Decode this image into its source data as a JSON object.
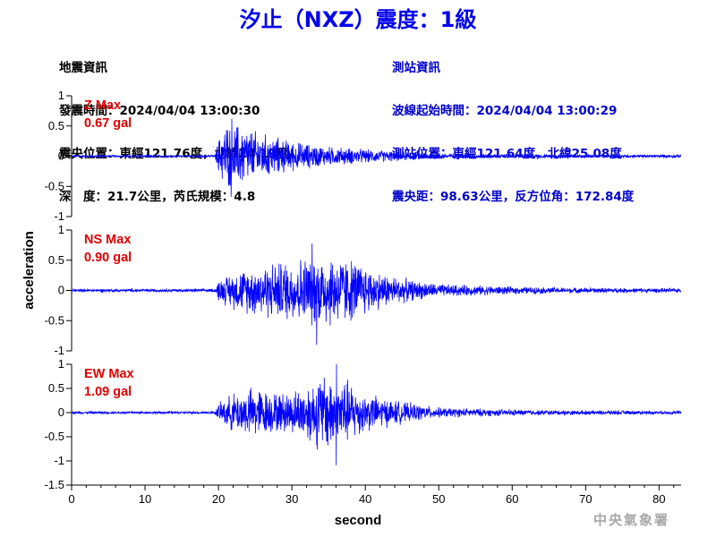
{
  "title": "汐止（NXZ）震度：1級",
  "quake": {
    "heading": "地震資訊",
    "origin_time": "發震時間：2024/04/04 13:00:30",
    "epicenter": "震央位置：東經121.76度，北緯24.19度",
    "depth_magnitude": "深　度：21.7公里，芮氏規模：4.8"
  },
  "station": {
    "heading": "測站資訊",
    "wave_start": "波線起始時間：2024/04/04 13:00:29",
    "location": "測站位置：東經121.64度，北緯25.08度",
    "distance": "震央距：98.63公里，反方位角：172.84度"
  },
  "watermark": "中央氣象署",
  "colors": {
    "trace": "#0000ff",
    "title": "#0000ee",
    "max_label": "#e00000",
    "station_text": "#0000cc"
  },
  "chart_data": {
    "type": "line",
    "xlabel": "second",
    "ylabel": "acceleration",
    "xlim": [
      0,
      83
    ],
    "x_ticks": [
      "0",
      "10",
      "20",
      "30",
      "40",
      "50",
      "60",
      "70",
      "80"
    ],
    "grid": false,
    "panels": [
      {
        "component": "Z",
        "label": "Z Max",
        "max_text": "0.67 gal",
        "max_value": 0.67,
        "ylim": [
          -1,
          1
        ],
        "y_ticks": [
          "1",
          "0.5",
          "0",
          "-0.5",
          "-1"
        ],
        "envelope": {
          "x": [
            0,
            19.5,
            20,
            21,
            23,
            26,
            30,
            35,
            40,
            45,
            50,
            60,
            70,
            83
          ],
          "amp": [
            0.02,
            0.02,
            0.32,
            0.62,
            0.6,
            0.42,
            0.28,
            0.18,
            0.13,
            0.09,
            0.06,
            0.04,
            0.03,
            0.03
          ]
        },
        "peak_range": [
          -0.67,
          0.62
        ]
      },
      {
        "component": "NS",
        "label": "NS Max",
        "max_text": "0.90 gal",
        "max_value": 0.9,
        "ylim": [
          -1,
          1
        ],
        "y_ticks": [
          "1",
          "0.5",
          "0",
          "-0.5",
          "-1"
        ],
        "envelope": {
          "x": [
            0,
            19.5,
            20,
            22,
            26,
            30,
            34,
            38,
            42,
            46,
            50,
            60,
            70,
            83
          ],
          "amp": [
            0.03,
            0.03,
            0.2,
            0.34,
            0.5,
            0.58,
            0.74,
            0.6,
            0.34,
            0.2,
            0.12,
            0.07,
            0.05,
            0.04
          ]
        },
        "peak_range": [
          -0.9,
          0.78
        ]
      },
      {
        "component": "EW",
        "label": "EW Max",
        "max_text": "1.09 gal",
        "max_value": 1.09,
        "ylim": [
          -1.5,
          1
        ],
        "y_ticks": [
          "1",
          "0.5",
          "0",
          "-0.5",
          "-1",
          "-1.5"
        ],
        "envelope": {
          "x": [
            0,
            19.5,
            20,
            22,
            25,
            28,
            31,
            34,
            36,
            40,
            45,
            50,
            60,
            70,
            83
          ],
          "amp": [
            0.03,
            0.03,
            0.2,
            0.45,
            0.6,
            0.45,
            0.55,
            0.9,
            0.95,
            0.45,
            0.25,
            0.12,
            0.07,
            0.05,
            0.04
          ]
        },
        "peak_range": [
          -1.09,
          1.0
        ]
      }
    ]
  }
}
